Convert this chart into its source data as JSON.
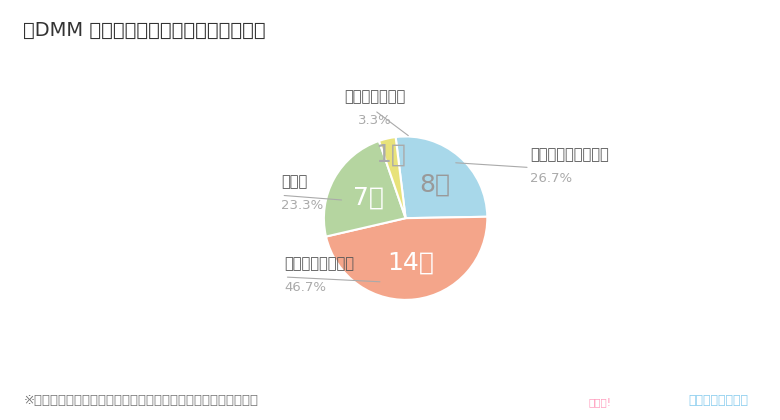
{
  "title": "＜DMM 英会話の料金についての満足度＞",
  "slices": [
    {
      "label": "とても満足している",
      "pct_label": "26.7%",
      "count": 8,
      "color": "#a8d8ea",
      "count_color": "#999999"
    },
    {
      "label": "やや満足している",
      "pct_label": "46.7%",
      "count": 14,
      "color": "#f4a58a",
      "count_color": "#ffffff"
    },
    {
      "label": "ふつう",
      "pct_label": "23.3%",
      "count": 7,
      "color": "#b5d5a0",
      "count_color": "#ffffff"
    },
    {
      "label": "やや不満がある",
      "pct_label": "3.3%",
      "count": 1,
      "color": "#e8e27a",
      "count_color": "#aaaaaa"
    }
  ],
  "values": [
    8,
    14,
    7,
    1
  ],
  "footnote": "※「まったく満足していない」という回答者はいませんでした。",
  "bg_color": "#ffffff",
  "title_fontsize": 14,
  "label_fontsize": 10.5,
  "pct_fontsize": 9.5,
  "count_fontsize": 18,
  "footnote_fontsize": 9.5,
  "startangle": 97,
  "annotate_data": [
    {
      "pt": [
        0.58,
        0.68
      ],
      "txt_pt": [
        1.52,
        0.62
      ],
      "ha": "left"
    },
    {
      "pt": [
        -0.28,
        -0.78
      ],
      "txt_pt": [
        -1.48,
        -0.72
      ],
      "ha": "left"
    },
    {
      "pt": [
        -0.75,
        0.22
      ],
      "txt_pt": [
        -1.52,
        0.28
      ],
      "ha": "left"
    },
    {
      "pt": [
        0.06,
        0.99
      ],
      "txt_pt": [
        -0.38,
        1.32
      ],
      "ha": "center"
    }
  ]
}
